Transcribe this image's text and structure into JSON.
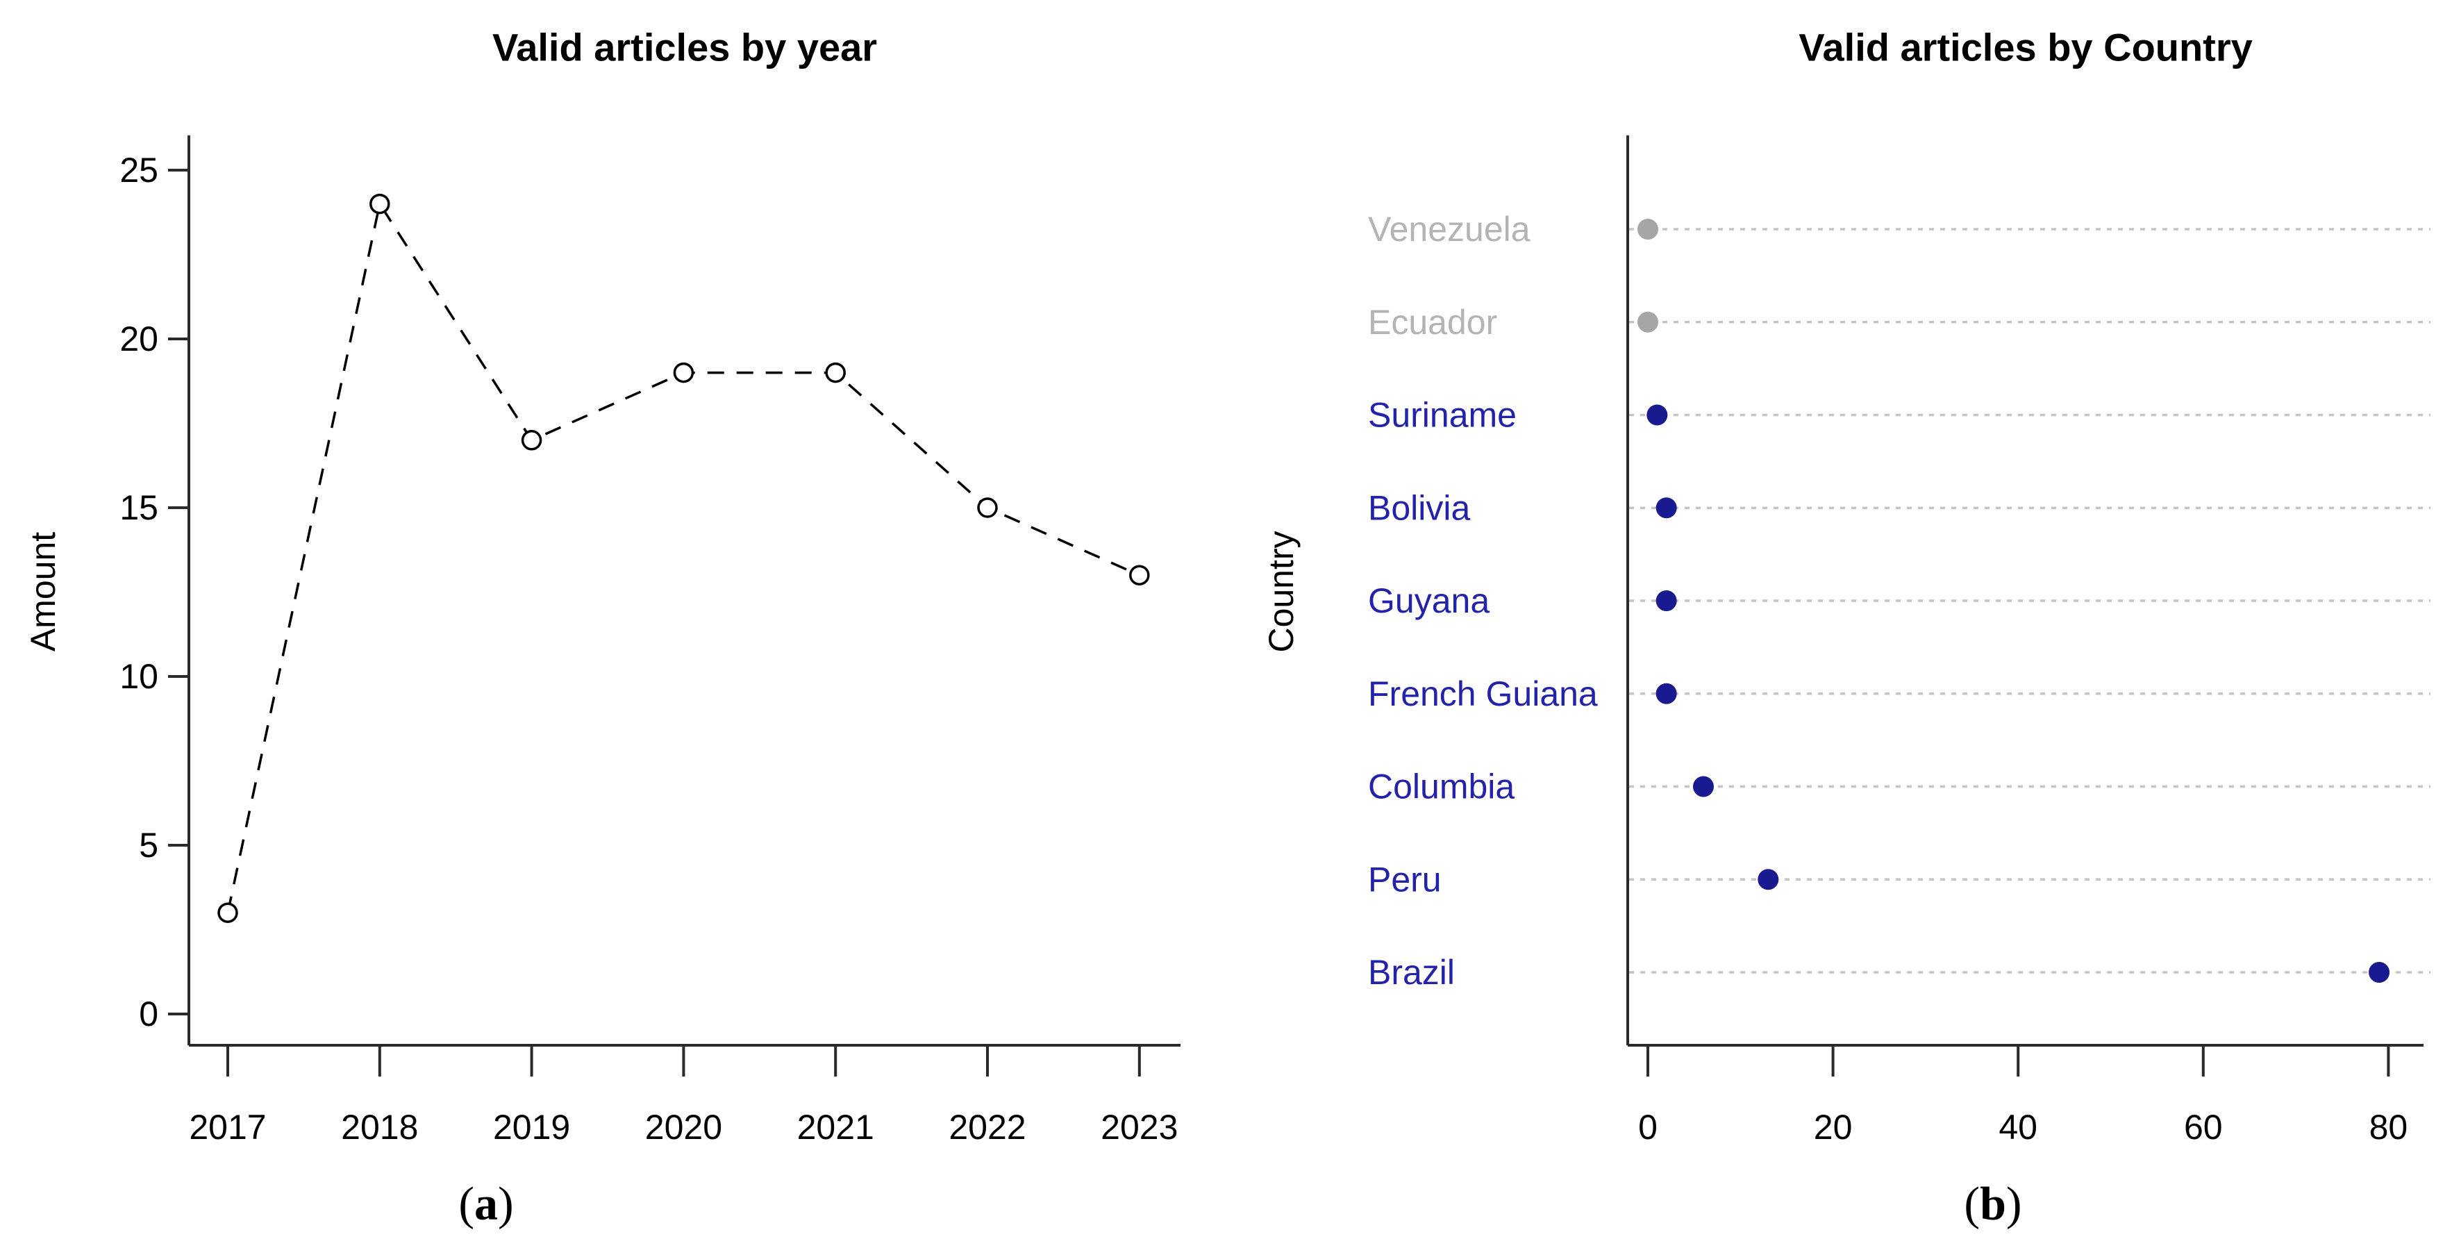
{
  "figure": {
    "panel_a": {
      "title": "Valid articles by year",
      "ylabel": "Amount",
      "caption": {
        "open": "(",
        "letter": "a",
        "close": ")"
      }
    },
    "panel_b": {
      "title": "Valid articles by Country",
      "ylabel": "Country",
      "caption": {
        "open": "(",
        "letter": "b",
        "close": ")"
      }
    }
  },
  "chart_data": [
    {
      "type": "line",
      "title": "Valid articles by year",
      "xlabel": "",
      "ylabel": "Amount",
      "categories": [
        "2017",
        "2018",
        "2019",
        "2020",
        "2021",
        "2022",
        "2023"
      ],
      "values": [
        3,
        24,
        17,
        19,
        19,
        15,
        13
      ],
      "yticks": [
        0,
        5,
        10,
        15,
        20,
        25
      ],
      "ylim": [
        0,
        26
      ],
      "line_style": "dashed",
      "marker": "open-circle",
      "grid": "off",
      "colors": {
        "line": "#000000",
        "marker_stroke": "#000000",
        "marker_fill": "#ffffff",
        "axis": "#2a2a2a",
        "tick_text": "#000000"
      }
    },
    {
      "type": "scatter",
      "title": "Valid articles by Country",
      "xlabel": "",
      "ylabel": "Country",
      "categories": [
        "Venezuela",
        "Ecuador",
        "Suriname",
        "Bolivia",
        "Guyana",
        "French Guiana",
        "Columbia",
        "Peru",
        "Brazil"
      ],
      "values": [
        0,
        0,
        1,
        2,
        2,
        2,
        6,
        13,
        79
      ],
      "muted": [
        true,
        true,
        false,
        false,
        false,
        false,
        false,
        false,
        false
      ],
      "xticks": [
        0,
        20,
        40,
        60,
        80
      ],
      "xlim": [
        0,
        80
      ],
      "grid": "dotted-horizontal",
      "legend": "none",
      "colors": {
        "dot": "#1a1a90",
        "dot_muted": "#a6a6a6",
        "label": "#2222aa",
        "label_muted": "#b4b4b4",
        "grid": "#c4c4c4",
        "axis": "#2a2a2a",
        "tick_text": "#000000"
      }
    }
  ]
}
